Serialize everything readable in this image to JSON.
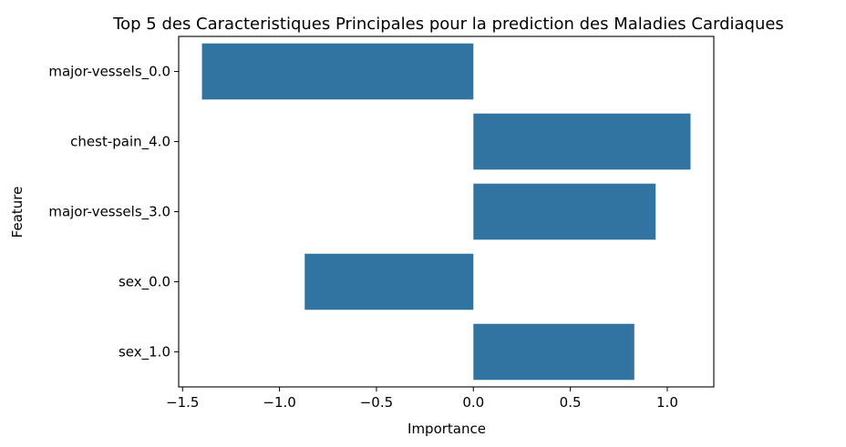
{
  "chart_data": {
    "type": "bar",
    "orientation": "horizontal",
    "title": "Top 5 des Caracteristiques Principales pour la prediction des Maladies Cardiaques",
    "xlabel": "Importance",
    "ylabel": "Feature",
    "categories": [
      "major-vessels_0.0",
      "chest-pain_4.0",
      "major-vessels_3.0",
      "sex_0.0",
      "sex_1.0"
    ],
    "values": [
      -1.4,
      1.12,
      0.94,
      -0.87,
      0.83
    ],
    "xlim": [
      -1.52,
      1.24
    ],
    "xticks": [
      -1.5,
      -1.0,
      -0.5,
      0.0,
      0.5,
      1.0
    ],
    "xtick_labels": [
      "−1.5",
      "−1.0",
      "−0.5",
      "0.0",
      "0.5",
      "1.0"
    ],
    "grid": false,
    "bar_color": "#3274a1"
  }
}
